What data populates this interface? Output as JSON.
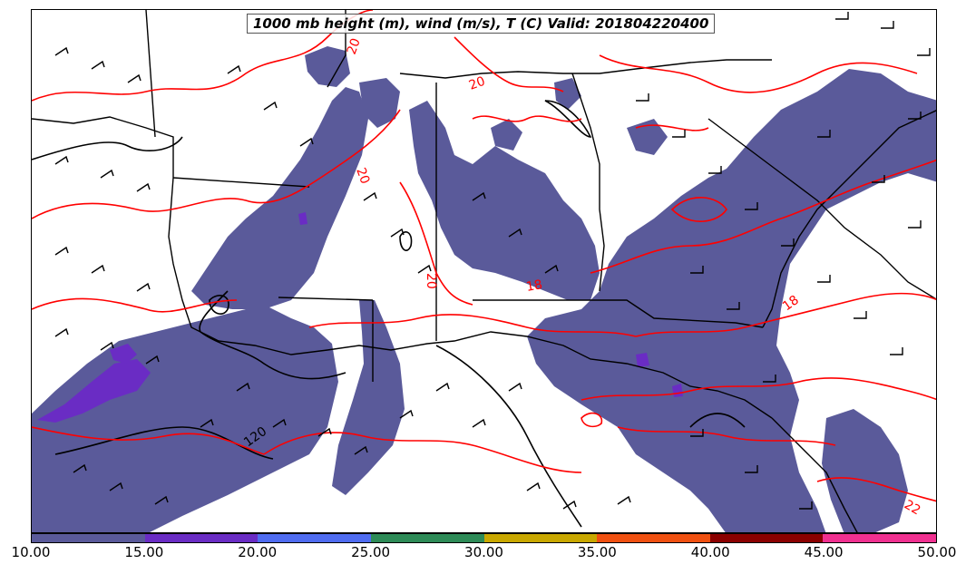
{
  "title": "1000 mb height (m), wind (m/s), T (C) Valid: 201804220400",
  "colors": {
    "precip_base": "#5a5a9a",
    "precip_heavy": "#6a2cc4",
    "temperature_contour": "#ff0000",
    "height_contour": "#000000",
    "wind_barb": "#000000"
  },
  "temperature_labels": [
    "20",
    "20",
    "20",
    "20",
    "18",
    "18",
    "22"
  ],
  "height_labels": [
    "120"
  ],
  "colorbar": {
    "segments": [
      {
        "range": [
          10,
          15
        ],
        "color": "#5a5a9a"
      },
      {
        "range": [
          15,
          20
        ],
        "color": "#6a2cc4"
      },
      {
        "range": [
          20,
          25
        ],
        "color": "#4f6cf0"
      },
      {
        "range": [
          25,
          30
        ],
        "color": "#2e8b57"
      },
      {
        "range": [
          30,
          35
        ],
        "color": "#c9a800"
      },
      {
        "range": [
          35,
          40
        ],
        "color": "#f05010"
      },
      {
        "range": [
          40,
          45
        ],
        "color": "#8b0000"
      },
      {
        "range": [
          45,
          50
        ],
        "color": "#f03090"
      }
    ],
    "ticks": [
      "10.00",
      "15.00",
      "20.00",
      "25.00",
      "30.00",
      "35.00",
      "40.00",
      "45.00",
      "50.00"
    ]
  }
}
